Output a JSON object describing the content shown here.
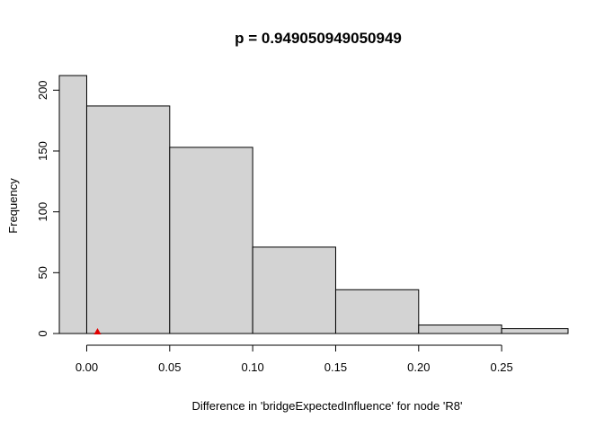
{
  "chart_data": {
    "type": "bar",
    "title": "p = 0.949050949050949",
    "xlabel": "Difference in 'bridgeExpectedInfluence' for node 'R8'",
    "ylabel": "Frequency",
    "bins": [
      {
        "start": -0.05,
        "end": 0.0,
        "count": 212
      },
      {
        "start": 0.0,
        "end": 0.05,
        "count": 187
      },
      {
        "start": 0.05,
        "end": 0.1,
        "count": 153
      },
      {
        "start": 0.1,
        "end": 0.15,
        "count": 71
      },
      {
        "start": 0.15,
        "end": 0.2,
        "count": 36
      },
      {
        "start": 0.2,
        "end": 0.25,
        "count": 7
      },
      {
        "start": 0.25,
        "end": 0.3,
        "count": 4
      }
    ],
    "x_ticks": [
      "0.00",
      "0.05",
      "0.10",
      "0.15",
      "0.20",
      "0.25"
    ],
    "y_ticks": [
      "0",
      "50",
      "100",
      "150",
      "200"
    ],
    "xlim": [
      -0.0165,
      0.29
    ],
    "ylim": [
      0,
      215
    ],
    "observed_marker": {
      "x": 0.0065,
      "y": 0,
      "color": "#e00000",
      "shape": "triangle"
    },
    "bar_color": "#d3d3d3",
    "grid": false
  }
}
